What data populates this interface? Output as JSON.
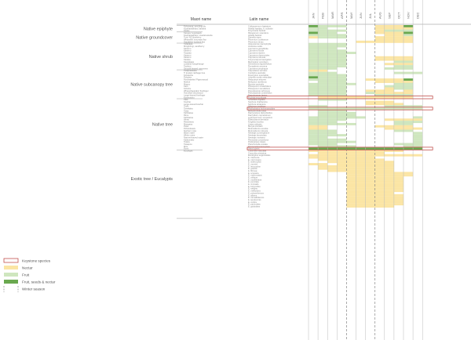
{
  "headers": {
    "maori": "Maori name",
    "latin": "Latin name"
  },
  "months": [
    "JAN",
    "FEB",
    "MAR",
    "APR",
    "MAY",
    "JUN",
    "JUL",
    "AUG",
    "SEP",
    "OCT",
    "NOV",
    "DEC"
  ],
  "winter_season_months": [
    "MAY",
    "JUN",
    "JUL"
  ],
  "colors": {
    "nectar": "#fbe5a4",
    "fruit": "#cfe6bf",
    "fruit_seeds_nectar": "#6aa84f",
    "keystone": "#c0504d",
    "grid": "#bbbbbb",
    "winter_dash": "#888888"
  },
  "legend": [
    {
      "key": "keystone",
      "label": "Keystone species"
    },
    {
      "key": "nectar",
      "label": "Nectar"
    },
    {
      "key": "fruit",
      "label": "Fruit"
    },
    {
      "key": "fruit_seeds_nectar",
      "label": "Fruit, seeds & nectar"
    },
    {
      "key": "winter",
      "label": "Winter season"
    }
  ],
  "chart_data": {
    "type": "heatmap",
    "title": "",
    "xlabel": "Month",
    "ylabel": "Species",
    "categories": [
      "JAN",
      "FEB",
      "MAR",
      "APR",
      "MAY",
      "JUN",
      "JUL",
      "AUG",
      "SEP",
      "OCT",
      "NOV",
      "DEC"
    ],
    "legend_position": "bottom-left",
    "value_codes": {
      "0": "none",
      "N": "nectar",
      "F": "fruit",
      "G": "fruit, seeds & nectar"
    },
    "groups": [
      {
        "label": "Native epiphyte",
        "rows": [
          {
            "maori": "Kohurangi, perching lily",
            "latin": "Collospermum hastatum",
            "months": "GFFF000NNNG0"
          },
          {
            "maori": "Kowharawhara, kahaha",
            "latin": "Astelia hastata, A. solandri",
            "months": "FF00000NNNN0"
          },
          {
            "maori": "Kiekie",
            "latin": "Freycinetia banksii",
            "months": "FFFF000NFFF0"
          }
        ]
      },
      {
        "label": "Native groundcover",
        "rows": [
          {
            "maori": "Kareao/ supplejack",
            "latin": "Ripogonum scandens",
            "months": "GFF0000NNNG0"
          },
          {
            "maori": "Kowharawhara, coastal astelia",
            "latin": "Astelia banksii",
            "months": "FFFF0000NNF0"
          },
          {
            "maori": "Tutu/ NZ blueberry",
            "latin": "Dianella nigra",
            "months": "NFFF000NNNN0"
          },
          {
            "maori": "Wharariki/ mountain flax",
            "latin": "Phormium cookianum",
            "months": "0000000NNNN0"
          },
          {
            "maori": "Harakeke/ lowland flax",
            "latin": "Phormium tenax",
            "months": "00000NNNNNN0"
          }
        ]
      },
      {
        "label": "Native shrub",
        "rows": [
          {
            "maori": "Tarapapa",
            "latin": "Alseuosmia macrophylla",
            "months": "FFFF00000000"
          },
          {
            "maori": "Mingimingi, sandberry",
            "latin": "Androsia ovalis",
            "months": "FFFF00000000"
          },
          {
            "maori": "Karamu",
            "latin": "Coprosma grandifolia",
            "months": "FFF000000000"
          },
          {
            "maori": "Karamu",
            "latin": "Coprosma lucida",
            "months": "FFFF00000000"
          },
          {
            "maori": "Taupata",
            "latin": "Coprosma repens",
            "months": "FFFFF0000000"
          },
          {
            "maori": "Karamu",
            "latin": "Coprosma rhamnoides",
            "months": "FFFF00000000"
          },
          {
            "maori": "Karamu",
            "latin": "Coprosma robusta",
            "months": "FFFF000NNNN0"
          },
          {
            "maori": "Karaka",
            "latin": "Corynocarpus laevigatus",
            "months": "FFFF000NNNN0"
          },
          {
            "maori": "Kawakawa",
            "latin": "Macropiper excelsum",
            "months": "FFFF00000FF0"
          },
          {
            "maori": "Lowland hangehange",
            "latin": "Geniostoma ligustrifolium",
            "months": "FFFF0000NNN0"
          },
          {
            "maori": "Tauhinu",
            "latin": "Pomaderris amoena",
            "months": "FFFF00000FF0"
          },
          {
            "maori": "Smooth-leaved coprosma",
            "latin": "Coprosma propinqua",
            "months": "FFF00000FFF0"
          }
        ]
      },
      {
        "label": "Native subcanopy tree",
        "rows": [
          {
            "maori": "Putaputaweta",
            "latin": "Carpodetus serratus",
            "months": "NN0000000000"
          },
          {
            "maori": "Ti kouka/ cabbage tree",
            "latin": "Cordyline australis",
            "months": "FFF000000FFF"
          },
          {
            "maori": "Kohekohe",
            "latin": "Dysoxylum spectabile",
            "months": "FFFF00000000"
          },
          {
            "maori": "Pukatea",
            "latin": "Laurelia novae-zelandiae",
            "months": "GFFF00000000"
          },
          {
            "maori": "Porokaiwhiri/ Pigeonwood",
            "latin": "Hedycarya arborea",
            "months": "FFFF00NNNNG0"
          },
          {
            "maori": "Mahoe",
            "latin": "Melicytus ramiflorus",
            "months": "0FFF000NNNN0"
          },
          {
            "maori": "Mapou",
            "latin": "Myrsine australis",
            "months": "FFFFF0000FF0"
          },
          {
            "maori": "Karo",
            "latin": "Pittosporum crassifolium",
            "months": "FFFF0000FFF0"
          },
          {
            "maori": "Kohuhu",
            "latin": "Pittosporum tenuifolium",
            "months": "FFFF0000NFF0"
          },
          {
            "maori": "Whauwhaupaku/ fivefinger",
            "latin": "Pseudopanax arboreus",
            "months": "FFFF00NNN0N0"
          },
          {
            "maori": "Horoeka/ lancewood",
            "latin": "Pseudopanax crassifolius",
            "months": "FFFF00FNNNN0"
          },
          {
            "maori": "Large-leaved fivefinger",
            "latin": "Pseudopanax laetus",
            "months": "FFFF000FFFF0"
          },
          {
            "maori": "Kotukutuku",
            "latin": "Fuchsia excorticata",
            "months": "0NNNNNNNNNN0",
            "keystone": true
          }
        ]
      },
      {
        "label": "Native tree",
        "rows": [
          {
            "maori": "Pate",
            "latin": "Schefflera digitata",
            "months": "0FFF00000000"
          },
          {
            "maori": "Kowhai",
            "latin": "Sophora chathamica",
            "months": "000000NNN000"
          },
          {
            "maori": "Large-leaved kowhai",
            "latin": "Sophora tetraptera",
            "months": "000000NNNN00"
          },
          {
            "maori": "Titoki",
            "latin": "Alectryon excelsus",
            "months": "FF000000FFFF"
          },
          {
            "maori": "Tanekaha",
            "latin": "Phyllocladus trichomanoides",
            "months": "FFFFFFFFFFFF",
            "keystone": true
          },
          {
            "maori": "Tawa",
            "latin": "Beilschmiedia tawa",
            "months": "0FFF00000000"
          },
          {
            "maori": "Kahikatea",
            "latin": "Dacrycarpus dacrydioides",
            "months": "0FFFF0000000"
          },
          {
            "maori": "Rimu",
            "latin": "Dacrydium cupressinum",
            "months": "0FFFF0000000"
          },
          {
            "maori": "Kahikatoa",
            "latin": "Leptospermum scoparium",
            "months": "FFFFFF00000F"
          },
          {
            "maori": "Hinau",
            "latin": "Elaeocarpus dentatus",
            "months": "FFFF0000NNNN"
          },
          {
            "maori": "Rewarewa",
            "latin": "Knightia excelsa",
            "months": "FFF000000FFF"
          },
          {
            "maori": "Mangeao",
            "latin": "Litsea calicaris",
            "months": "FFFFF0000FF0"
          },
          {
            "maori": "Puka",
            "latin": "Meryta sinclairii",
            "months": "NN00000NNNN0"
          },
          {
            "maori": "Pohutukawa",
            "latin": "Metrosideros excelsa",
            "months": "NN000000NNNN"
          },
          {
            "maori": "Northern rata",
            "latin": "Metrosideros robusta",
            "months": "FFF000000FF0"
          },
          {
            "maori": "Black maire",
            "latin": "Nestegis cunninghamii",
            "months": "FFF00000000F"
          },
          {
            "maori": "White maire",
            "latin": "Nestegis lanceolata",
            "months": "FFFF0000000F"
          },
          {
            "maori": "Narrow-leaved maire",
            "latin": "Nestegis montana",
            "months": "FF000000000F"
          },
          {
            "maori": "Kaikomako",
            "latin": "Pennantia corymbosa",
            "months": "FFFF0000000F"
          },
          {
            "maori": "Totara",
            "latin": "Podocarpus totara",
            "months": "FFFFF000000F"
          },
          {
            "maori": "Tawapou",
            "latin": "Planchonella costata",
            "months": "FFF000000FFF"
          },
          {
            "maori": "Miro",
            "latin": "Prumnopitys ferruginea",
            "months": "0FFFF00000FF"
          },
          {
            "maori": "Puriri",
            "latin": "Vitex lucens",
            "months": "GGGGGGGGGGGG",
            "keystone": true
          }
        ]
      },
      {
        "label": "Exotic tree / Eucalypts",
        "rows": [
          {
            "maori": "Eucalypts",
            "latin": "Corymbia maculata",
            "months": "NNNNNNNNNN00"
          },
          {
            "maori": "",
            "latin": "Corymbia citriodora",
            "months": "0NNNNNNN0000"
          },
          {
            "maori": "",
            "latin": "Eucalyptus eugenioides",
            "months": "NNNNNNNNNNNN"
          },
          {
            "maori": "",
            "latin": "E. intertexta",
            "months": "NNNNNNN00000"
          },
          {
            "maori": "",
            "latin": "E. microcarpa",
            "months": "0NNNNNNN0000"
          },
          {
            "maori": "",
            "latin": "E. sideroxylon",
            "months": "00NNNNNNN000"
          },
          {
            "maori": "",
            "latin": "E. morrisii",
            "months": "NN0NNNNNN000"
          },
          {
            "maori": "",
            "latin": "E. leucoxylon",
            "months": "0NNNNNNNN000"
          },
          {
            "maori": "",
            "latin": "E. gracilis",
            "months": "0NNNNNNNN000"
          },
          {
            "maori": "",
            "latin": "E. fibrosa",
            "months": "00NNNNNNN000"
          },
          {
            "maori": "",
            "latin": "E. scoparia",
            "months": "0000NNNNNNN0"
          },
          {
            "maori": "",
            "latin": "E. macrocarpa",
            "months": "0000NNNNNNN0"
          },
          {
            "maori": "",
            "latin": "E. obliqua",
            "months": "0000NNNNNN00"
          },
          {
            "maori": "",
            "latin": "E. muelleriana",
            "months": "0000NNNNNN00"
          },
          {
            "maori": "",
            "latin": "E. punctata",
            "months": "0000NNNNNN00"
          },
          {
            "maori": "",
            "latin": "E. viminalis",
            "months": "0000NNNNNN00"
          },
          {
            "maori": "",
            "latin": "E. botryoides",
            "months": "0000NNNNNN00"
          },
          {
            "maori": "",
            "latin": "E. saligna",
            "months": "0000NNNNNN00"
          },
          {
            "maori": "",
            "latin": "E. melliodora",
            "months": "0000NNNNNN00"
          },
          {
            "maori": "",
            "latin": "E. polyanthemos",
            "months": "0000NNNNN000"
          },
          {
            "maori": "",
            "latin": "E. albens",
            "months": "0000NNNNNN00"
          },
          {
            "maori": "",
            "latin": "E. camaldulensis",
            "months": "0000NNNNNN00"
          },
          {
            "maori": "",
            "latin": "E. tereticornis",
            "months": "0000NNNNNN00"
          },
          {
            "maori": "",
            "latin": "E. crebra",
            "months": "0000NNNNNN00"
          },
          {
            "maori": "",
            "latin": "E. paniculata",
            "months": "0000NNNNNN00"
          },
          {
            "maori": "",
            "latin": "E. globoidea",
            "months": "0000NNNNN000"
          }
        ]
      }
    ]
  }
}
